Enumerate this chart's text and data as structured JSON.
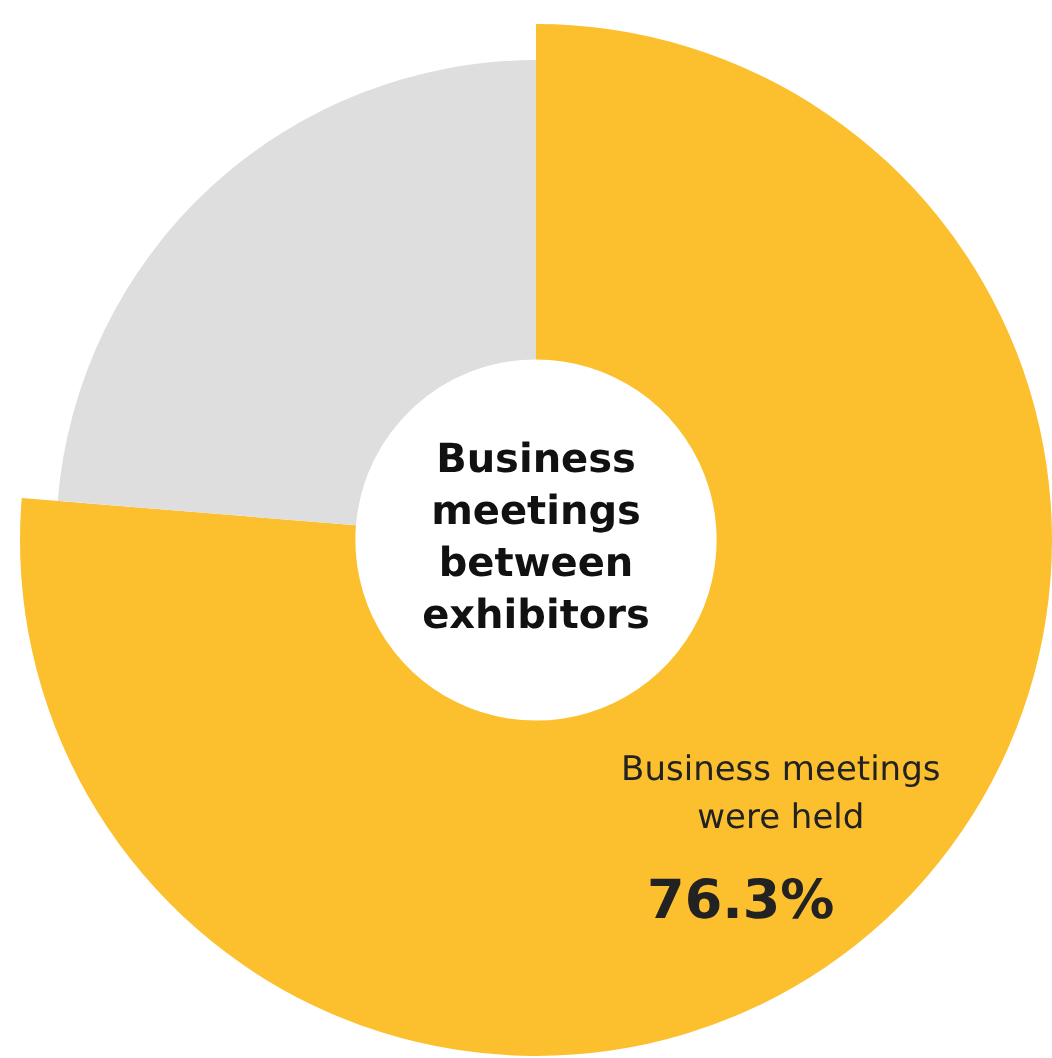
{
  "chart_data": {
    "type": "donut",
    "title": "Business meetings between exhibitors",
    "categories": [
      "Business meetings were held",
      null
    ],
    "values": [
      76.3,
      23.7
    ],
    "colors": [
      "#fcc02e",
      "#dedede"
    ],
    "value_labels": [
      "76.3%",
      null
    ],
    "legend": false
  }
}
